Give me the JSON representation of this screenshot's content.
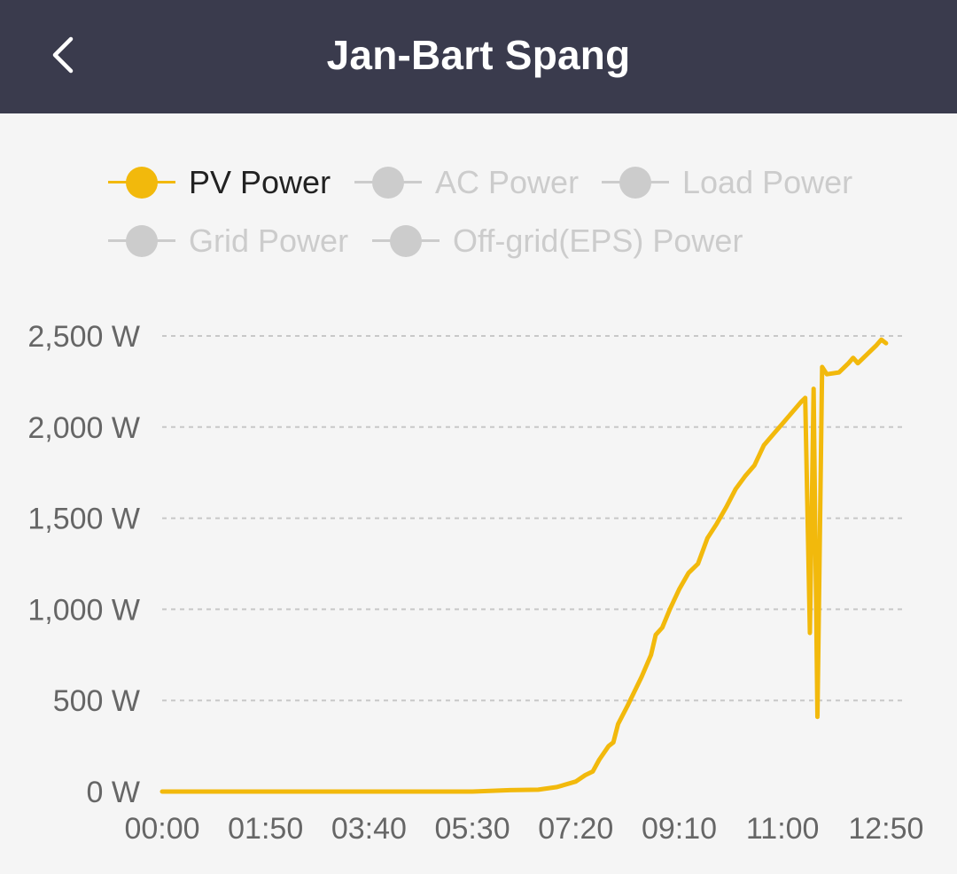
{
  "header": {
    "title": "Jan-Bart Spang"
  },
  "legend": [
    {
      "label": "PV Power",
      "active": true,
      "color": "#f2b90c"
    },
    {
      "label": "AC Power",
      "active": false,
      "color": "#cccccc"
    },
    {
      "label": "Load Power",
      "active": false,
      "color": "#cccccc"
    },
    {
      "label": "Grid Power",
      "active": false,
      "color": "#cccccc"
    },
    {
      "label": "Off-grid(EPS) Power",
      "active": false,
      "color": "#cccccc"
    }
  ],
  "chart_data": {
    "type": "line",
    "title": "",
    "xlabel": "",
    "ylabel": "",
    "ylim": [
      0,
      2500
    ],
    "yticks": [
      0,
      500,
      1000,
      1500,
      2000,
      2500
    ],
    "ytick_labels": [
      "0 W",
      "500 W",
      "1,000 W",
      "1,500 W",
      "2,000 W",
      "2,500 W"
    ],
    "xtick_labels": [
      "00:00",
      "01:50",
      "03:40",
      "05:30",
      "07:20",
      "09:10",
      "11:00",
      "12:50"
    ],
    "grid": true,
    "legend_position": "top",
    "series": [
      {
        "name": "PV Power",
        "color": "#f2b90c",
        "points": [
          [
            "00:00",
            0
          ],
          [
            "05:30",
            0
          ],
          [
            "06:10",
            8
          ],
          [
            "06:40",
            10
          ],
          [
            "07:00",
            25
          ],
          [
            "07:20",
            55
          ],
          [
            "07:30",
            90
          ],
          [
            "07:38",
            110
          ],
          [
            "07:45",
            175
          ],
          [
            "07:55",
            250
          ],
          [
            "08:00",
            270
          ],
          [
            "08:05",
            370
          ],
          [
            "08:15",
            470
          ],
          [
            "08:30",
            630
          ],
          [
            "08:40",
            750
          ],
          [
            "08:45",
            860
          ],
          [
            "08:52",
            900
          ],
          [
            "09:00",
            1000
          ],
          [
            "09:10",
            1110
          ],
          [
            "09:20",
            1200
          ],
          [
            "09:30",
            1250
          ],
          [
            "09:40",
            1390
          ],
          [
            "09:50",
            1470
          ],
          [
            "10:00",
            1560
          ],
          [
            "10:10",
            1660
          ],
          [
            "10:20",
            1730
          ],
          [
            "10:30",
            1790
          ],
          [
            "10:40",
            1900
          ],
          [
            "10:50",
            1960
          ],
          [
            "11:00",
            2020
          ],
          [
            "11:10",
            2080
          ],
          [
            "11:20",
            2140
          ],
          [
            "11:24",
            2160
          ],
          [
            "11:29",
            870
          ],
          [
            "11:33",
            2210
          ],
          [
            "11:37",
            410
          ],
          [
            "11:42",
            2330
          ],
          [
            "11:47",
            2290
          ],
          [
            "12:00",
            2300
          ],
          [
            "12:10",
            2350
          ],
          [
            "12:15",
            2380
          ],
          [
            "12:20",
            2350
          ],
          [
            "12:30",
            2400
          ],
          [
            "12:40",
            2450
          ],
          [
            "12:45",
            2480
          ],
          [
            "12:50",
            2460
          ]
        ]
      }
    ]
  }
}
